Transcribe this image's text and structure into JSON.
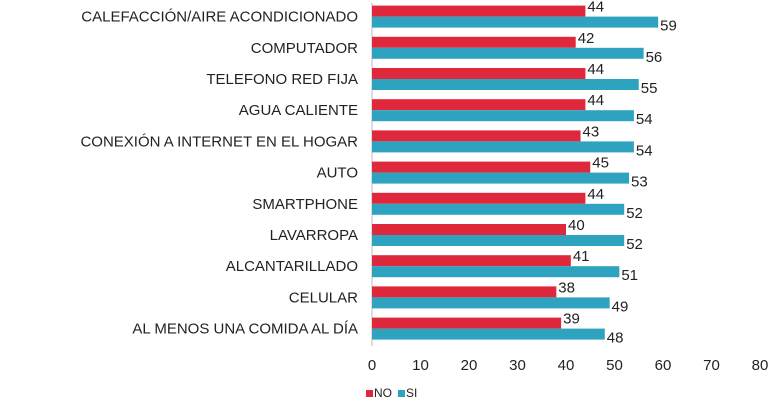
{
  "chart_data": {
    "type": "bar",
    "orientation": "horizontal",
    "categories": [
      "CALEFACCIÓN/AIRE ACONDICIONADO",
      "COMPUTADOR",
      "TELEFONO RED FIJA",
      "AGUA CALIENTE",
      "CONEXIÓN A INTERNET EN EL HOGAR",
      "AUTO",
      "SMARTPHONE",
      "LAVARROPA",
      "ALCANTARILLADO",
      "CELULAR",
      "AL MENOS UNA COMIDA AL DÍA"
    ],
    "series": [
      {
        "name": "NO",
        "color": "#e0283c",
        "values": [
          44,
          42,
          44,
          44,
          43,
          45,
          44,
          40,
          41,
          38,
          39
        ]
      },
      {
        "name": "SI",
        "color": "#2ea3c0",
        "values": [
          59,
          56,
          55,
          54,
          54,
          53,
          52,
          52,
          51,
          49,
          48
        ]
      }
    ],
    "xlim": [
      0,
      80
    ],
    "xticks": [
      0,
      10,
      20,
      30,
      40,
      50,
      60,
      70,
      80
    ],
    "grid": false,
    "legend": "bottom"
  }
}
